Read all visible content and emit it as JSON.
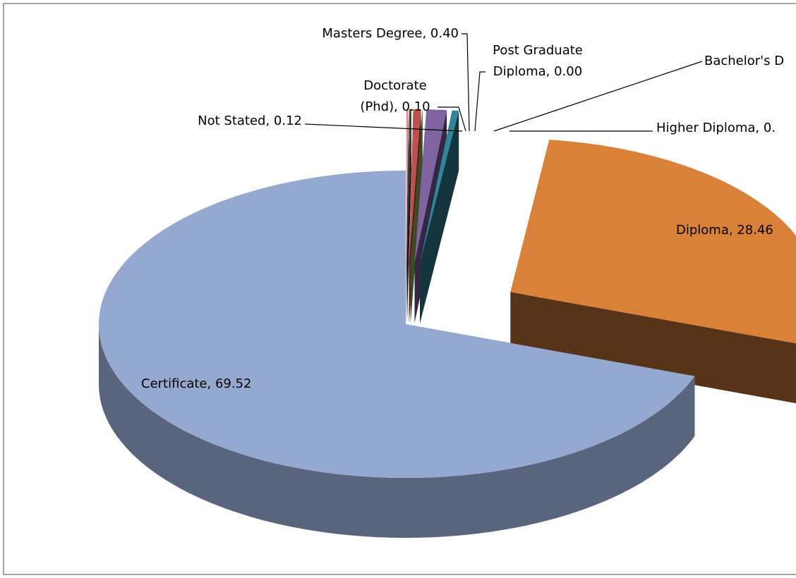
{
  "chart_data": {
    "type": "pie3d",
    "categories": [
      "Not Stated",
      "Doctorate (Phd)",
      "Masters Degree",
      "Post Graduate Diploma",
      "Bachelor's D",
      "Higher Diploma",
      "Diploma",
      "Certificate"
    ],
    "labels": [
      "Not Stated, 0.12",
      "Doctorate\n(Phd), 0.10",
      "Masters Degree, 0.40",
      "Post Graduate\nDiploma, 0.00",
      "Bachelor's D",
      "Higher Diploma, 0.",
      "Diploma, 28.46",
      "Certificate, 69.52"
    ],
    "values": [
      0.12,
      0.1,
      0.4,
      0.0,
      1.05,
      0.35,
      28.46,
      69.52
    ],
    "colors": [
      "#d99694",
      "#3a3a3a",
      "#c0504d",
      "#9bbb59",
      "#8064a2",
      "#31859c",
      "#d98039",
      "#95a9d0"
    ]
  }
}
